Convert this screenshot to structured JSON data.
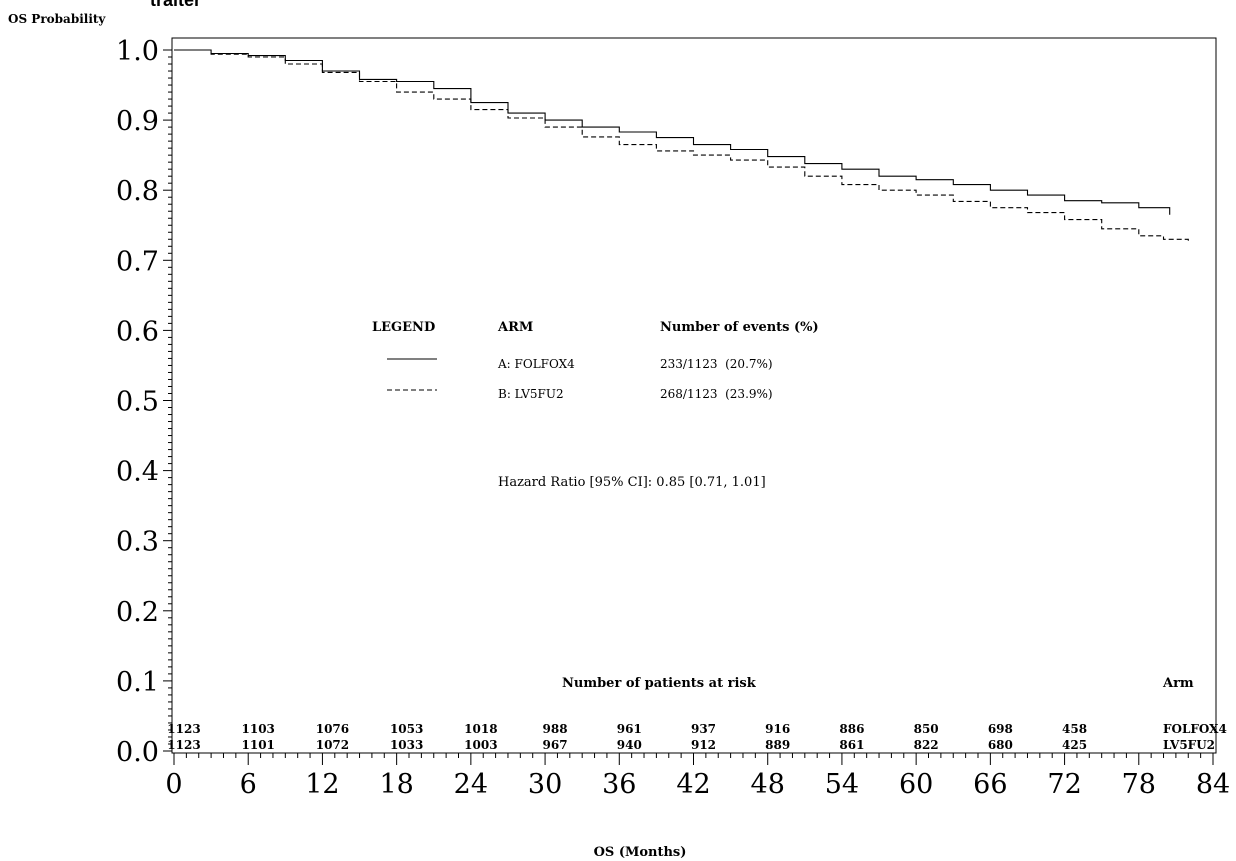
{
  "header": {
    "cropped_title": "traitér",
    "y_axis_title": "OS Probability"
  },
  "chart_data": {
    "type": "line",
    "title": "",
    "xlabel": "OS (Months)",
    "ylabel": "OS Probability",
    "xlim": [
      0,
      84
    ],
    "ylim": [
      0.0,
      1.0
    ],
    "x_ticks": [
      "0",
      "6",
      "12",
      "18",
      "24",
      "30",
      "36",
      "42",
      "48",
      "54",
      "60",
      "66",
      "72",
      "78",
      "84"
    ],
    "y_ticks": [
      "0.0",
      "0.1",
      "0.2",
      "0.3",
      "0.4",
      "0.5",
      "0.6",
      "0.7",
      "0.8",
      "0.9",
      "1.0"
    ],
    "grid": false,
    "series": [
      {
        "name": "A: FOLFOX4",
        "style": "solid",
        "points": [
          [
            0,
            1.0
          ],
          [
            3,
            0.995
          ],
          [
            6,
            0.992
          ],
          [
            9,
            0.985
          ],
          [
            12,
            0.97
          ],
          [
            15,
            0.958
          ],
          [
            18,
            0.955
          ],
          [
            21,
            0.945
          ],
          [
            24,
            0.925
          ],
          [
            27,
            0.91
          ],
          [
            30,
            0.9
          ],
          [
            33,
            0.89
          ],
          [
            36,
            0.883
          ],
          [
            39,
            0.875
          ],
          [
            42,
            0.865
          ],
          [
            45,
            0.858
          ],
          [
            48,
            0.848
          ],
          [
            51,
            0.838
          ],
          [
            54,
            0.83
          ],
          [
            57,
            0.82
          ],
          [
            60,
            0.815
          ],
          [
            63,
            0.808
          ],
          [
            66,
            0.8
          ],
          [
            69,
            0.793
          ],
          [
            72,
            0.785
          ],
          [
            75,
            0.782
          ],
          [
            78,
            0.775
          ],
          [
            80.5,
            0.77
          ],
          [
            80.5,
            0.765
          ]
        ]
      },
      {
        "name": "B: LV5FU2",
        "style": "dashed",
        "points": [
          [
            0,
            1.0
          ],
          [
            3,
            0.994
          ],
          [
            6,
            0.99
          ],
          [
            9,
            0.98
          ],
          [
            12,
            0.968
          ],
          [
            15,
            0.955
          ],
          [
            18,
            0.94
          ],
          [
            21,
            0.93
          ],
          [
            24,
            0.915
          ],
          [
            27,
            0.903
          ],
          [
            30,
            0.89
          ],
          [
            33,
            0.876
          ],
          [
            36,
            0.865
          ],
          [
            39,
            0.856
          ],
          [
            42,
            0.85
          ],
          [
            45,
            0.843
          ],
          [
            48,
            0.833
          ],
          [
            51,
            0.82
          ],
          [
            54,
            0.808
          ],
          [
            57,
            0.8
          ],
          [
            60,
            0.793
          ],
          [
            63,
            0.784
          ],
          [
            66,
            0.775
          ],
          [
            69,
            0.768
          ],
          [
            72,
            0.758
          ],
          [
            75,
            0.745
          ],
          [
            78,
            0.735
          ],
          [
            80,
            0.73
          ],
          [
            82,
            0.728
          ]
        ]
      }
    ],
    "legend": {
      "heading": "LEGEND",
      "col_arm": "ARM",
      "col_events": "Number of events (%)",
      "rows": [
        {
          "style": "solid",
          "arm": "A: FOLFOX4",
          "events": "233/1123  (20.7%)"
        },
        {
          "style": "dashed",
          "arm": "B: LV5FU2",
          "events": "268/1123  (23.9%)"
        }
      ]
    },
    "annotation": "Hazard Ratio [95% CI]: 0.85 [0.71, 1.01]",
    "risk_table": {
      "title": "Number of patients at risk",
      "arm_header": "Arm",
      "times": [
        0,
        6,
        12,
        18,
        24,
        30,
        36,
        42,
        48,
        54,
        60,
        66,
        72
      ],
      "rows": [
        {
          "arm": "FOLFOX4",
          "values": [
            "1123",
            "1103",
            "1076",
            "1053",
            "1018",
            "988",
            "961",
            "937",
            "916",
            "886",
            "850",
            "698",
            "458"
          ]
        },
        {
          "arm": "LV5FU2",
          "values": [
            "1123",
            "1101",
            "1072",
            "1033",
            "1003",
            "967",
            "940",
            "912",
            "889",
            "861",
            "822",
            "680",
            "425"
          ]
        }
      ]
    }
  }
}
